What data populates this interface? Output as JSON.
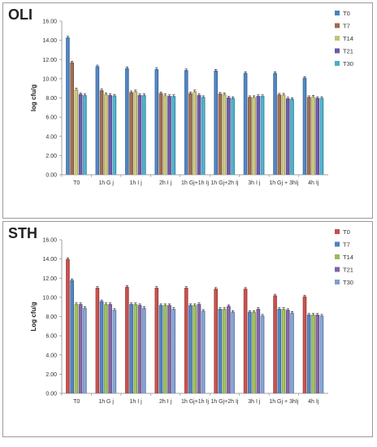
{
  "chart_data": [
    {
      "type": "bar",
      "panel_label": "OLI",
      "ylabel": "log cfu/g",
      "ylim": [
        0,
        16
      ],
      "yticks": [
        "0.00",
        "2.00",
        "4.00",
        "6.00",
        "8.00",
        "10.00",
        "12.00",
        "14.00",
        "16.00"
      ],
      "error_bars": true,
      "legend_position": "right",
      "categories": [
        "T0",
        "1h G j",
        "1h I j",
        "2h I j",
        "1h Gj+1h Ij",
        "1h Gj+2h Ij",
        "3h I j",
        "1h Gj + 3hIj",
        "4h Ij"
      ],
      "series": [
        {
          "name": "T0",
          "color": "#4f81bd",
          "values": [
            14.3,
            11.3,
            11.1,
            11.0,
            10.9,
            10.85,
            10.6,
            10.6,
            10.1
          ]
        },
        {
          "name": "T7",
          "color": "#9c6b4e",
          "values": [
            11.7,
            8.8,
            8.6,
            8.5,
            8.5,
            8.45,
            8.1,
            8.35,
            8.1
          ]
        },
        {
          "name": "T14",
          "color": "#c3c27a",
          "values": [
            8.9,
            8.4,
            8.7,
            8.3,
            8.7,
            8.4,
            8.1,
            8.35,
            8.15
          ]
        },
        {
          "name": "T21",
          "color": "#6a58a8",
          "values": [
            8.4,
            8.3,
            8.3,
            8.2,
            8.3,
            8.05,
            8.2,
            7.95,
            8.0
          ]
        },
        {
          "name": "T30",
          "color": "#4bacc6",
          "values": [
            8.3,
            8.25,
            8.3,
            8.2,
            8.1,
            8.0,
            8.2,
            7.9,
            8.0
          ]
        }
      ]
    },
    {
      "type": "bar",
      "panel_label": "STH",
      "ylabel": "Log cfu/g",
      "ylim": [
        0,
        16
      ],
      "yticks": [
        "0.00",
        "2.00",
        "4.00",
        "6.00",
        "8.00",
        "10.00",
        "12.00",
        "14.00",
        "16.00"
      ],
      "error_bars": true,
      "legend_position": "right",
      "categories": [
        "T0",
        "1h G j",
        "1h I j",
        "2h I j",
        "1h Gj+1h Ij",
        "1h Gj+2h Ij",
        "3h I j",
        "1h Gj + 3hIj",
        "4h Ij"
      ],
      "series": [
        {
          "name": "T0",
          "color": "#c0504d",
          "values": [
            14.0,
            11.0,
            11.1,
            11.0,
            11.0,
            10.9,
            10.9,
            10.2,
            10.1
          ]
        },
        {
          "name": "T7",
          "color": "#4f81bd",
          "values": [
            11.8,
            9.6,
            9.3,
            9.2,
            9.2,
            8.8,
            8.5,
            8.8,
            8.2
          ]
        },
        {
          "name": "T14",
          "color": "#9bbb59",
          "values": [
            9.3,
            9.3,
            9.3,
            9.2,
            9.2,
            8.8,
            8.5,
            8.8,
            8.2
          ]
        },
        {
          "name": "T21",
          "color": "#8064a2",
          "values": [
            9.3,
            9.3,
            9.2,
            9.2,
            9.3,
            9.1,
            8.8,
            8.7,
            8.2
          ]
        },
        {
          "name": "T30",
          "color": "#7f9fd0",
          "values": [
            8.9,
            8.7,
            8.9,
            8.8,
            8.6,
            8.5,
            8.1,
            8.4,
            8.1
          ]
        }
      ]
    }
  ]
}
